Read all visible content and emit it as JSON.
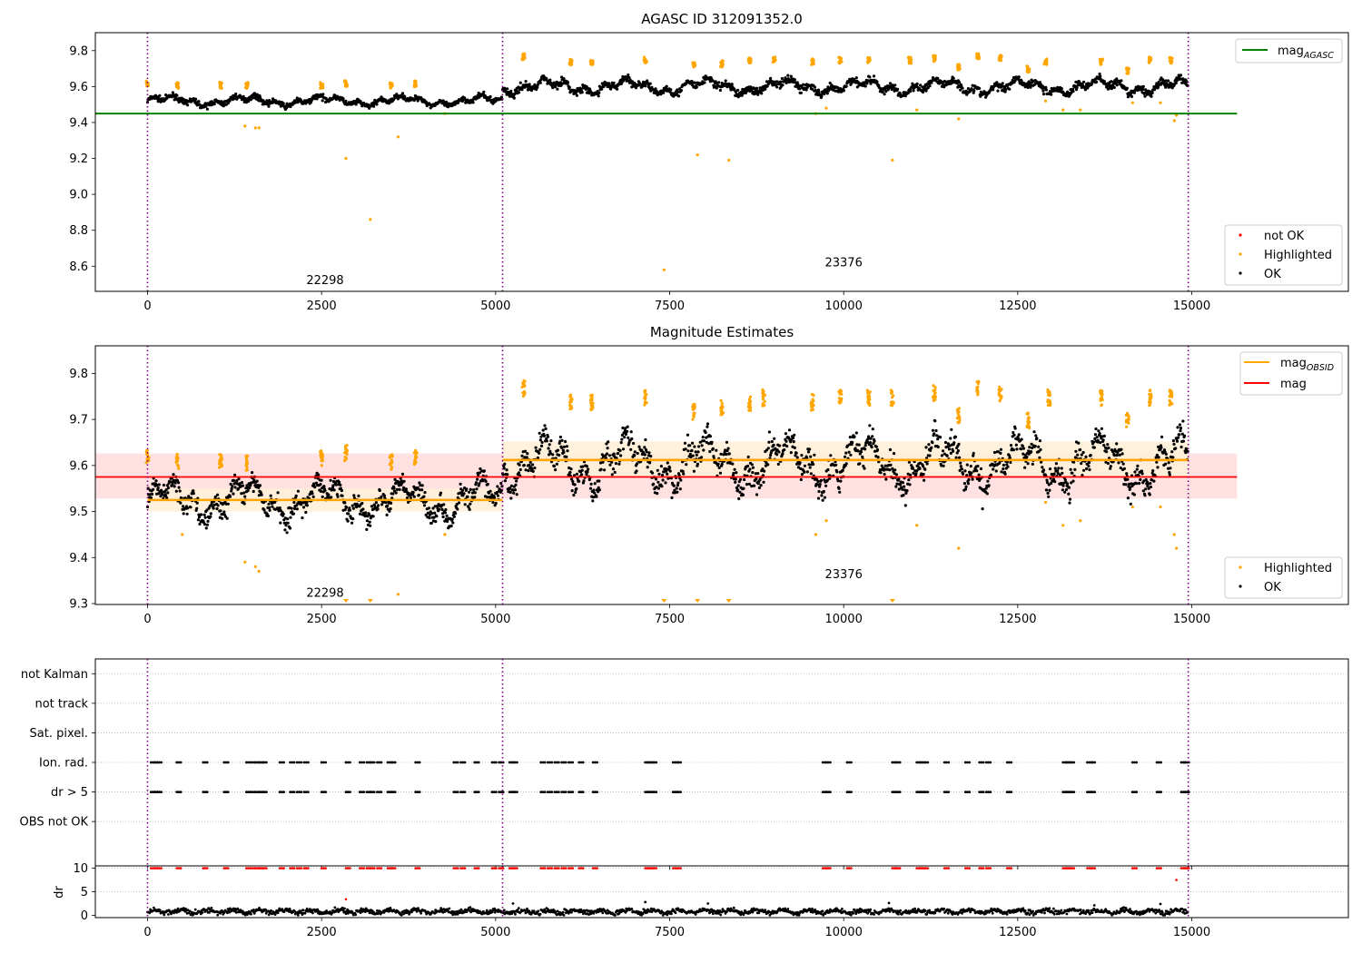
{
  "chart_data": [
    {
      "type": "scatter",
      "title": "AGASC ID 312091352.0",
      "xlim": [
        -750,
        17250
      ],
      "ylim": [
        8.46,
        9.9
      ],
      "xticks": [
        0,
        2500,
        5000,
        7500,
        10000,
        12500,
        15000
      ],
      "yticks": [
        8.6,
        8.8,
        9.0,
        9.2,
        9.4,
        9.6,
        9.8
      ],
      "xtick_labels": [
        "0",
        "2500",
        "5000",
        "7500",
        "10000",
        "12500",
        "15000"
      ],
      "ytick_labels": [
        "8.6",
        "8.8",
        "9.0",
        "9.2",
        "9.4",
        "9.6",
        "9.8"
      ],
      "obs_boundaries": [
        0,
        5100,
        14950
      ],
      "obsid_labels": [
        {
          "text": "22298",
          "x": 2550,
          "y": 8.5
        },
        {
          "text": "23376",
          "x": 10000,
          "y": 8.6
        }
      ],
      "lines": [
        {
          "name": "mag",
          "sub": "AGASC",
          "y": 9.45,
          "x": [
            -750,
            15650
          ],
          "color": "#008000"
        }
      ],
      "segments": [
        {
          "x": [
            0,
            5100
          ],
          "ok_mean": 9.52,
          "ok_amp": 0.02
        },
        {
          "x": [
            5100,
            14950
          ],
          "ok_mean": 9.6,
          "ok_amp": 0.03
        }
      ],
      "highlighted_clusters": [
        [
          0,
          9.61
        ],
        [
          430,
          9.6
        ],
        [
          1050,
          9.6
        ],
        [
          1430,
          9.6
        ],
        [
          2500,
          9.6
        ],
        [
          2850,
          9.61
        ],
        [
          3500,
          9.6
        ],
        [
          3850,
          9.61
        ],
        [
          5400,
          9.76
        ],
        [
          6080,
          9.73
        ],
        [
          6380,
          9.73
        ],
        [
          7150,
          9.74
        ],
        [
          7850,
          9.71
        ],
        [
          8250,
          9.72
        ],
        [
          8650,
          9.74
        ],
        [
          9000,
          9.74
        ],
        [
          9550,
          9.73
        ],
        [
          9950,
          9.74
        ],
        [
          10360,
          9.74
        ],
        [
          10950,
          9.74
        ],
        [
          11300,
          9.75
        ],
        [
          11650,
          9.7
        ],
        [
          11930,
          9.76
        ],
        [
          12250,
          9.75
        ],
        [
          12650,
          9.69
        ],
        [
          12900,
          9.73
        ],
        [
          13700,
          9.73
        ],
        [
          14080,
          9.68
        ],
        [
          14400,
          9.74
        ],
        [
          14700,
          9.74
        ]
      ],
      "highlighted_outliers": [
        [
          1400,
          9.38
        ],
        [
          1550,
          9.37
        ],
        [
          1600,
          9.37
        ],
        [
          2850,
          9.2
        ],
        [
          3200,
          8.86
        ],
        [
          3600,
          9.32
        ],
        [
          4270,
          9.45
        ],
        [
          7420,
          8.58
        ],
        [
          7900,
          9.22
        ],
        [
          8350,
          9.19
        ],
        [
          9600,
          9.45
        ],
        [
          9750,
          9.48
        ],
        [
          10700,
          9.19
        ],
        [
          11050,
          9.47
        ],
        [
          11650,
          9.42
        ],
        [
          12900,
          9.52
        ],
        [
          13150,
          9.47
        ],
        [
          13400,
          9.47
        ],
        [
          14150,
          9.51
        ],
        [
          14550,
          9.51
        ],
        [
          14750,
          9.41
        ],
        [
          14780,
          9.44
        ]
      ],
      "legends": [
        {
          "placement": "upper-right",
          "entries": [
            {
              "label": "mag",
              "sub": "AGASC",
              "color": "#008000",
              "kind": "line"
            }
          ]
        },
        {
          "placement": "lower-right",
          "entries": [
            {
              "label": "not OK",
              "color": "#ff0000",
              "kind": "marker"
            },
            {
              "label": "Highlighted",
              "color": "#ffa500",
              "kind": "marker"
            },
            {
              "label": "OK",
              "color": "#000000",
              "kind": "marker"
            }
          ]
        }
      ]
    },
    {
      "type": "scatter",
      "title": "Magnitude Estimates",
      "xlim": [
        -750,
        17250
      ],
      "ylim": [
        9.298,
        9.86
      ],
      "xticks": [
        0,
        2500,
        5000,
        7500,
        10000,
        12500,
        15000
      ],
      "yticks": [
        9.3,
        9.4,
        9.5,
        9.6,
        9.7,
        9.8
      ],
      "xtick_labels": [
        "0",
        "2500",
        "5000",
        "7500",
        "10000",
        "12500",
        "15000"
      ],
      "ytick_labels": [
        "9.3",
        "9.4",
        "9.5",
        "9.6",
        "9.7",
        "9.8"
      ],
      "obs_boundaries": [
        0,
        5100,
        14950
      ],
      "obsid_labels": [
        {
          "text": "22298",
          "x": 2550,
          "y": 9.315
        },
        {
          "text": "23376",
          "x": 10000,
          "y": 9.355
        }
      ],
      "bands": [
        {
          "name": "mag",
          "y": 9.575,
          "lo": 9.528,
          "hi": 9.626,
          "x": [
            -750,
            15650
          ],
          "color": "#ff0000",
          "fill": "#ffd9d9"
        },
        {
          "name": "mag",
          "sub": "OBSID",
          "y": 9.525,
          "lo": 9.5,
          "hi": 9.55,
          "x": [
            0,
            5100
          ],
          "color": "#ffa500",
          "fill": "#fff0d8"
        },
        {
          "name": "mag",
          "sub": "OBSID",
          "y": 9.612,
          "lo": 9.578,
          "hi": 9.652,
          "x": [
            5100,
            14950
          ],
          "color": "#ffa500",
          "fill": "#fff0d8"
        }
      ],
      "segments": [
        {
          "x": [
            0,
            5100
          ],
          "ok_mean": 9.525,
          "ok_amp": 0.03
        },
        {
          "x": [
            5100,
            14950
          ],
          "ok_mean": 9.605,
          "ok_amp": 0.04
        }
      ],
      "highlighted_clusters": [
        [
          0,
          9.61
        ],
        [
          430,
          9.6
        ],
        [
          1050,
          9.6
        ],
        [
          1430,
          9.6
        ],
        [
          2500,
          9.61
        ],
        [
          2850,
          9.62
        ],
        [
          3500,
          9.6
        ],
        [
          3850,
          9.61
        ],
        [
          5400,
          9.76
        ],
        [
          6080,
          9.73
        ],
        [
          6380,
          9.73
        ],
        [
          7150,
          9.74
        ],
        [
          7850,
          9.71
        ],
        [
          8250,
          9.72
        ],
        [
          8650,
          9.73
        ],
        [
          8850,
          9.74
        ],
        [
          9550,
          9.73
        ],
        [
          9950,
          9.74
        ],
        [
          10360,
          9.74
        ],
        [
          10700,
          9.74
        ],
        [
          11300,
          9.75
        ],
        [
          11650,
          9.7
        ],
        [
          11930,
          9.76
        ],
        [
          12250,
          9.75
        ],
        [
          12650,
          9.69
        ],
        [
          12950,
          9.74
        ],
        [
          13700,
          9.74
        ],
        [
          14080,
          9.69
        ],
        [
          14400,
          9.74
        ],
        [
          14700,
          9.74
        ]
      ],
      "highlighted_outliers": [
        [
          500,
          9.45
        ],
        [
          1400,
          9.39
        ],
        [
          1550,
          9.38
        ],
        [
          1600,
          9.37
        ],
        [
          3600,
          9.32
        ],
        [
          4270,
          9.45
        ],
        [
          9600,
          9.45
        ],
        [
          9750,
          9.48
        ],
        [
          11050,
          9.47
        ],
        [
          11650,
          9.42
        ],
        [
          12900,
          9.52
        ],
        [
          13150,
          9.47
        ],
        [
          13400,
          9.48
        ],
        [
          14150,
          9.51
        ],
        [
          14550,
          9.51
        ],
        [
          14750,
          9.45
        ],
        [
          14780,
          9.42
        ]
      ],
      "clipped_markers": [
        2850,
        3200,
        7420,
        7900,
        8350,
        10700
      ],
      "legends": [
        {
          "placement": "upper-right",
          "entries": [
            {
              "label": "mag",
              "sub": "OBSID",
              "color": "#ffa500",
              "kind": "line"
            },
            {
              "label": "mag",
              "color": "#ff0000",
              "kind": "line"
            }
          ]
        },
        {
          "placement": "lower-right",
          "entries": [
            {
              "label": "Highlighted",
              "color": "#ffa500",
              "kind": "marker"
            },
            {
              "label": "OK",
              "color": "#000000",
              "kind": "marker"
            }
          ]
        }
      ]
    },
    {
      "type": "scatter",
      "title": "",
      "xlim": [
        -750,
        17250
      ],
      "ylim": [
        -0.5,
        6.5
      ],
      "xticks": [
        0,
        2500,
        5000,
        7500,
        10000,
        12500,
        15000
      ],
      "xtick_labels": [],
      "yticks": [
        0,
        1,
        2,
        3,
        4,
        5,
        6
      ],
      "ytick_labels": [
        "OBS not OK",
        "dr > 5",
        "Ion. rad.",
        "Sat. pixel.",
        "not track",
        "not Kalman"
      ],
      "grid": true,
      "obs_boundaries": [
        0,
        5100,
        14950
      ],
      "flag_rows": [
        {
          "row": "Ion. rad.",
          "level": 3,
          "color": "#000000"
        },
        {
          "row": "dr > 5",
          "level": 2,
          "color": "#000000"
        }
      ],
      "flag_x": [
        50,
        80,
        110,
        140,
        420,
        800,
        1100,
        1420,
        1480,
        1550,
        1600,
        1650,
        1900,
        2050,
        2150,
        2250,
        2500,
        2850,
        3050,
        3150,
        3200,
        3300,
        3450,
        3500,
        3850,
        4400,
        4500,
        4700,
        4950,
        5050,
        5200,
        5250,
        5650,
        5750,
        5850,
        5950,
        6050,
        6200,
        6400,
        7150,
        7200,
        7250,
        7550,
        7600,
        9700,
        9750,
        10050,
        10700,
        10750,
        11050,
        11100,
        11150,
        11450,
        11750,
        11950,
        12050,
        12350,
        13150,
        13200,
        13250,
        13500,
        13550,
        14150,
        14500,
        14850,
        14900
      ]
    },
    {
      "type": "scatter",
      "title": "",
      "ylabel": "dr",
      "xlim": [
        -750,
        17250
      ],
      "ylim": [
        -0.5,
        10.5
      ],
      "xticks": [
        0,
        2500,
        5000,
        7500,
        10000,
        12500,
        15000
      ],
      "xtick_labels": [
        "0",
        "2500",
        "5000",
        "7500",
        "10000",
        "12500",
        "15000"
      ],
      "yticks": [
        0,
        5,
        10
      ],
      "ytick_labels": [
        "0",
        "5",
        "10"
      ],
      "grid": true,
      "obs_boundaries": [
        0,
        5100,
        14950
      ],
      "dr_mean": 0.8,
      "dr_spikes": [
        [
          5250,
          2.5
        ],
        [
          7150,
          2.8
        ],
        [
          8050,
          2.5
        ],
        [
          10650,
          2.6
        ],
        [
          13600,
          2.1
        ],
        [
          14550,
          2.4
        ]
      ],
      "dr_red_singles": [
        [
          2850,
          3.4
        ],
        [
          14780,
          7.5
        ]
      ],
      "dr_capped": 10
    }
  ]
}
